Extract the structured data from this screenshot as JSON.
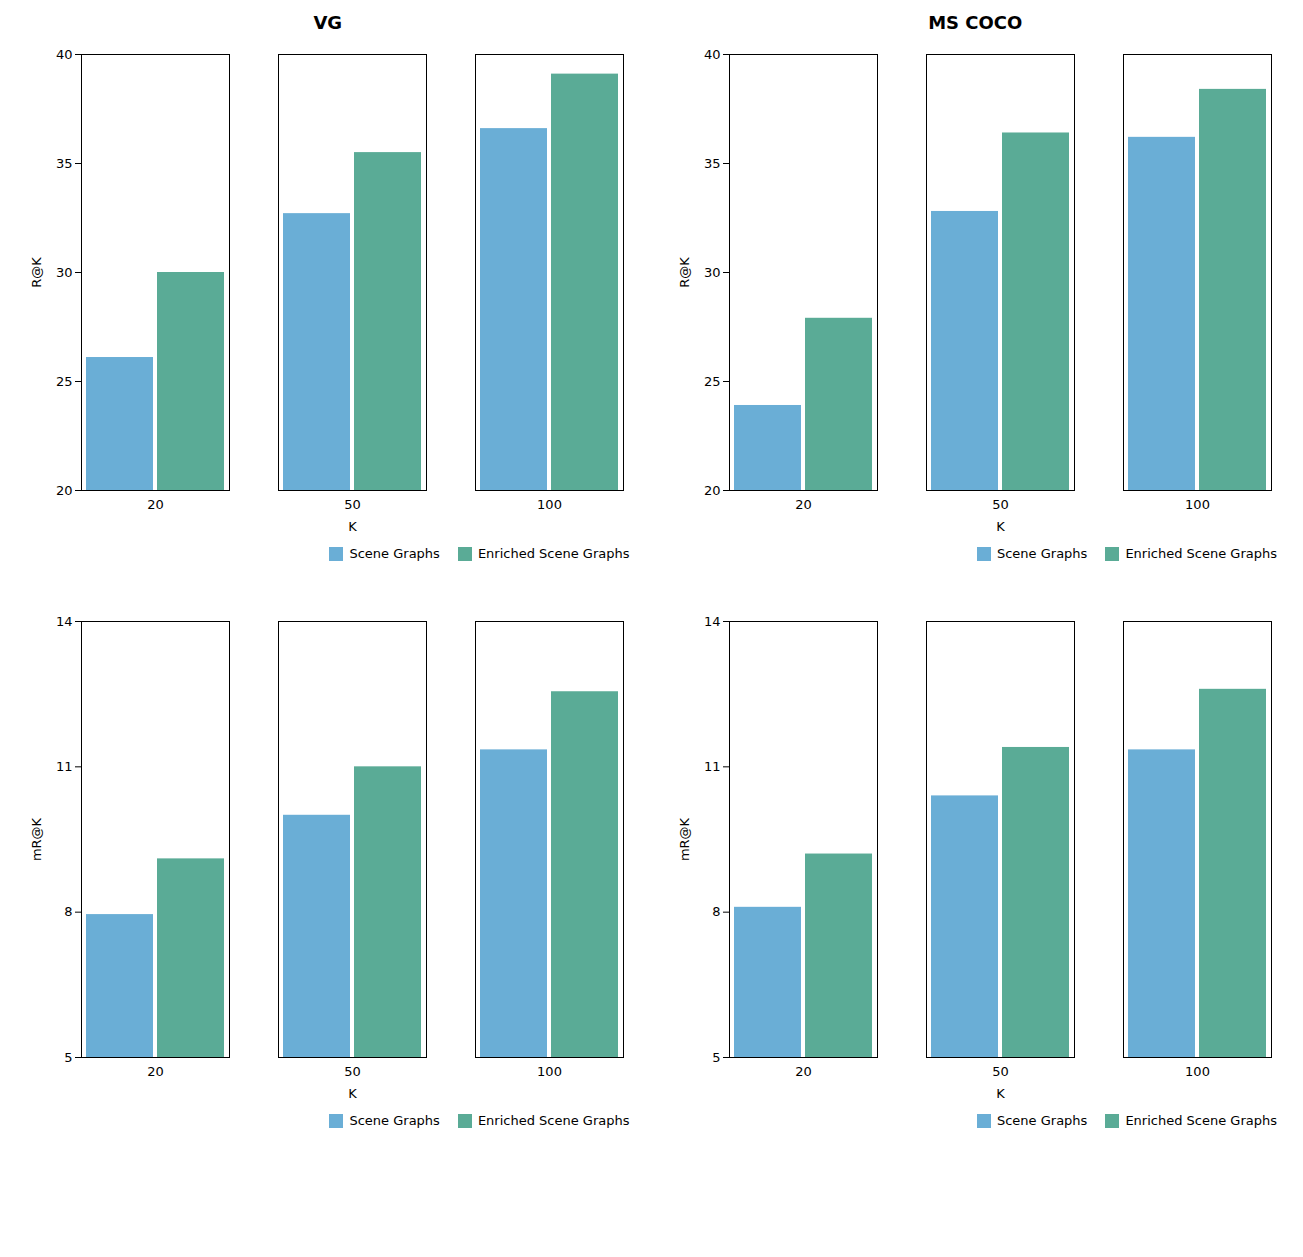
{
  "chart_data": [
    {
      "type": "bar",
      "title": "VG",
      "categories": [
        "20",
        "50",
        "100"
      ],
      "series": [
        {
          "name": "Scene Graphs",
          "color": "#6aaed6",
          "values": [
            26.1,
            32.7,
            36.6
          ]
        },
        {
          "name": "Enriched Scene Graphs",
          "color": "#5aab96",
          "values": [
            30.0,
            35.5,
            39.1
          ]
        }
      ],
      "xlabel": "K",
      "ylabel": "R@K",
      "ylim": [
        20,
        40
      ],
      "yticks": [
        20,
        25,
        30,
        35,
        40
      ],
      "grid": false,
      "legend": "lower right"
    },
    {
      "type": "bar",
      "title": "MS COCO",
      "categories": [
        "20",
        "50",
        "100"
      ],
      "series": [
        {
          "name": "Scene Graphs",
          "color": "#6aaed6",
          "values": [
            23.9,
            32.8,
            36.2
          ]
        },
        {
          "name": "Enriched Scene Graphs",
          "color": "#5aab96",
          "values": [
            27.9,
            36.4,
            38.4
          ]
        }
      ],
      "xlabel": "K",
      "ylabel": "R@K",
      "ylim": [
        20,
        40
      ],
      "yticks": [
        20,
        25,
        30,
        35,
        40
      ],
      "grid": false,
      "legend": "lower right"
    },
    {
      "type": "bar",
      "categories": [
        "20",
        "50",
        "100"
      ],
      "series": [
        {
          "name": "Scene Graphs",
          "color": "#6aaed6",
          "values": [
            7.95,
            10.0,
            11.35
          ]
        },
        {
          "name": "Enriched Scene Graphs",
          "color": "#5aab96",
          "values": [
            9.1,
            11.0,
            12.55
          ]
        }
      ],
      "xlabel": "K",
      "ylabel": "mR@K",
      "ylim": [
        5,
        14
      ],
      "yticks": [
        5,
        8,
        11,
        14
      ],
      "grid": false,
      "legend": "lower right"
    },
    {
      "type": "bar",
      "categories": [
        "20",
        "50",
        "100"
      ],
      "series": [
        {
          "name": "Scene Graphs",
          "color": "#6aaed6",
          "values": [
            8.1,
            10.4,
            11.35
          ]
        },
        {
          "name": "Enriched Scene Graphs",
          "color": "#5aab96",
          "values": [
            9.2,
            11.4,
            12.6
          ]
        }
      ],
      "xlabel": "K",
      "ylabel": "mR@K",
      "ylim": [
        5,
        14
      ],
      "yticks": [
        5,
        8,
        11,
        14
      ],
      "grid": false,
      "legend": "lower right"
    }
  ]
}
